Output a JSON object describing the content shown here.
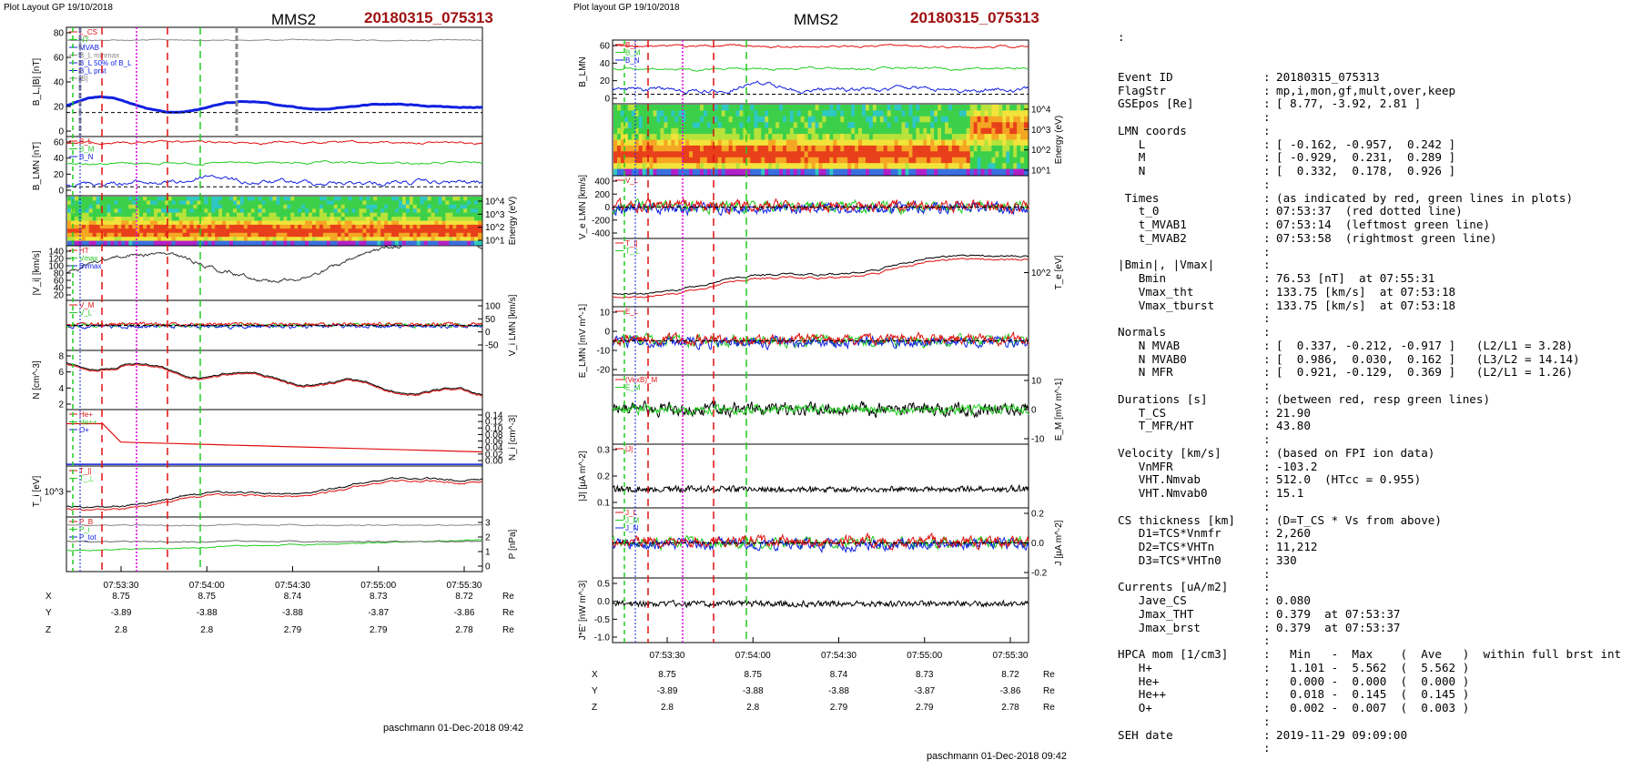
{
  "colors": {
    "red": "#e01010",
    "green": "#22cc22",
    "blue": "#1020e0",
    "black": "#000000",
    "gray": "#888888",
    "magenta": "#dd00dd",
    "title_red": "#a01010"
  },
  "panels": [
    {
      "header_left": "Plot Layout GP 19/10/2018",
      "title": "MMS2",
      "event": "20180315_075313",
      "footer": "paschmann 01-Dec-2018 09:42",
      "time_ticks": [
        "07:53:30",
        "07:54:00",
        "07:54:30",
        "07:55:00",
        "07:55:30"
      ],
      "ephemeris": [
        {
          "name": "X",
          "values": [
            "8.75",
            "8.75",
            "8.74",
            "8.73",
            "8.72"
          ],
          "unit": "Re"
        },
        {
          "name": "Y",
          "values": [
            "-3.89",
            "-3.88",
            "-3.88",
            "-3.87",
            "-3.86"
          ],
          "unit": "Re"
        },
        {
          "name": "Z",
          "values": [
            "2.8",
            "2.8",
            "2.79",
            "2.79",
            "2.78"
          ],
          "unit": "Re"
        }
      ],
      "subplots": [
        {
          "ylabel": "B_L,|B| [nT]",
          "ylabel_side": "left",
          "ticks": [
            "80",
            "60",
            "40",
            "20",
            "0"
          ],
          "legend": [
            "L_CS",
            "HT",
            "MVAB",
            "B_L minmax",
            "B_L 50% of B_L",
            "B_L prst",
            "|B|"
          ]
        },
        {
          "ylabel": "B_LMN [nT]",
          "ylabel_side": "left",
          "ticks": [
            "60",
            "40",
            "20",
            "0"
          ],
          "legend": [
            "B_L",
            "B_M",
            "B_N"
          ]
        },
        {
          "ylabel": "Energy (eV)",
          "ylabel_side": "right",
          "ticks": [
            "10^4",
            "10^3",
            "10^2",
            "10^1"
          ],
          "legend": []
        },
        {
          "ylabel": "|V_i| [km/s]",
          "ylabel_side": "left",
          "ticks": [
            "140",
            "120",
            "100",
            "80",
            "60",
            "40",
            "20"
          ],
          "legend": [
            "HT",
            "Vmax",
            "Bvmax"
          ]
        },
        {
          "ylabel": "V_i LMN [km/s]",
          "ylabel_side": "right",
          "ticks": [
            "100",
            "50",
            "0",
            "-50"
          ],
          "legend": [
            "V_M",
            "V_L"
          ]
        },
        {
          "ylabel": "N [cm^-3]",
          "ylabel_side": "left",
          "ticks": [
            "8",
            "6",
            "4",
            "2"
          ],
          "legend": []
        },
        {
          "ylabel": "N_i [cm^-3]",
          "ylabel_side": "right",
          "ticks": [
            "0.14",
            "0.12",
            "0.10",
            "0.08",
            "0.06",
            "0.04",
            "0.02",
            "0.00"
          ],
          "legend": [
            "He+",
            "He++",
            "O+"
          ]
        },
        {
          "ylabel": "T_i [eV]",
          "ylabel_side": "left",
          "ticks": [
            "10^3"
          ],
          "legend": [
            "T_||",
            "T_⊥"
          ]
        },
        {
          "ylabel": "P [nPa]",
          "ylabel_side": "right",
          "ticks": [
            "3",
            "2",
            "1",
            "0"
          ],
          "legend": [
            "P_B",
            "P_i",
            "P_tot"
          ]
        }
      ]
    },
    {
      "header_left": "Plot layout GP 19/10/2018",
      "title": "MMS2",
      "event": "20180315_075313",
      "footer": "paschmann 01-Dec-2018 09:42",
      "time_ticks": [
        "07:53:30",
        "07:54:00",
        "07:54:30",
        "07:55:00",
        "07:55:30"
      ],
      "ephemeris": [
        {
          "name": "X",
          "values": [
            "8.75",
            "8.75",
            "8.74",
            "8.73",
            "8.72"
          ],
          "unit": "Re"
        },
        {
          "name": "Y",
          "values": [
            "-3.89",
            "-3.88",
            "-3.88",
            "-3.87",
            "-3.86"
          ],
          "unit": "Re"
        },
        {
          "name": "Z",
          "values": [
            "2.8",
            "2.8",
            "2.79",
            "2.79",
            "2.78"
          ],
          "unit": "Re"
        }
      ],
      "subplots": [
        {
          "ylabel": "B_LMN",
          "ylabel_side": "left",
          "ticks": [
            "60",
            "40",
            "20",
            "0"
          ],
          "legend": [
            "B_L",
            "B_M",
            "B_N"
          ]
        },
        {
          "ylabel": "Energy (eV)",
          "ylabel_side": "right",
          "ticks": [
            "10^4",
            "10^3",
            "10^2",
            "10^1"
          ],
          "legend": []
        },
        {
          "ylabel": "V_e LMN [km/s]",
          "ylabel_side": "left",
          "ticks": [
            "400",
            "200",
            "0",
            "-200",
            "-400"
          ],
          "legend": [
            "V_L"
          ]
        },
        {
          "ylabel": "T_e [eV]",
          "ylabel_side": "right",
          "ticks": [
            "10^2"
          ],
          "legend": [
            "T_||",
            "T_⊥"
          ]
        },
        {
          "ylabel": "E_LMN [mV m^-1]",
          "ylabel_side": "left",
          "ticks": [
            "10",
            "0",
            "-10",
            "-20"
          ],
          "legend": [
            "E_L"
          ]
        },
        {
          "ylabel": "E_M [mV m^-1]",
          "ylabel_side": "right",
          "ticks": [
            "10",
            "0",
            "-10"
          ],
          "legend": [
            "(VexB)_M",
            "E_M"
          ]
        },
        {
          "ylabel": "|J| [µA m^-2]",
          "ylabel_side": "left",
          "ticks": [
            "0.3",
            "0.2",
            "0.1"
          ],
          "legend": [
            "|J|"
          ]
        },
        {
          "ylabel": "J [µA m^-2]",
          "ylabel_side": "right",
          "ticks": [
            "0.2",
            "0.0",
            "-0.2"
          ],
          "legend": [
            "J_L",
            "J_M",
            "J_N"
          ]
        },
        {
          "ylabel": "J*E' [nW m^-3]",
          "ylabel_side": "left",
          "ticks": [
            "0.5",
            "0.0",
            "-0.5",
            "-1.0"
          ],
          "legend": []
        }
      ]
    }
  ],
  "info": {
    "top_mark": ":",
    "rows": [
      {
        "label": "Event ID",
        "value": "20180315_075313"
      },
      {
        "label": "FlagStr",
        "value": "mp,i,mon,gf,mult,over,keep"
      },
      {
        "label": "GSEpos [Re]",
        "value": "[ 8.77, -3.92, 2.81 ]"
      },
      {
        "label": "",
        "value": ""
      },
      {
        "label": "LMN coords",
        "value": ""
      },
      {
        "label": "   L",
        "value": "[ -0.162, -0.957,  0.242 ]"
      },
      {
        "label": "   M",
        "value": "[ -0.929,  0.231,  0.289 ]"
      },
      {
        "label": "   N",
        "value": "[  0.332,  0.178,  0.926 ]"
      },
      {
        "label": "",
        "value": ""
      },
      {
        "label": " Times",
        "value": "(as indicated by red, green lines in plots)"
      },
      {
        "label": "   t_0",
        "value": "07:53:37  (red dotted line)"
      },
      {
        "label": "   t_MVAB1",
        "value": "07:53:14  (leftmost green line)"
      },
      {
        "label": "   t_MVAB2",
        "value": "07:53:58  (rightmost green line)"
      },
      {
        "label": "",
        "value": ""
      },
      {
        "label": "|Bmin|, |Vmax|",
        "value": ""
      },
      {
        "label": "   Bmin",
        "value": "76.53 [nT]  at 07:55:31"
      },
      {
        "label": "   Vmax_tht",
        "value": "133.75 [km/s]  at 07:53:18"
      },
      {
        "label": "   Vmax_tburst",
        "value": "133.75 [km/s]  at 07:53:18"
      },
      {
        "label": "",
        "value": ""
      },
      {
        "label": "Normals",
        "value": ""
      },
      {
        "label": "   N MVAB",
        "value": "[  0.337, -0.212, -0.917 ]   (L2/L1 = 3.28)"
      },
      {
        "label": "   N MVAB0",
        "value": "[  0.986,  0.030,  0.162 ]   (L3/L2 = 14.14)"
      },
      {
        "label": "   N MFR",
        "value": "[  0.921, -0.129,  0.369 ]   (L2/L1 = 1.26)"
      },
      {
        "label": "",
        "value": ""
      },
      {
        "label": "Durations [s]",
        "value": "(between red, resp green lines)"
      },
      {
        "label": "   T_CS",
        "value": "21.90"
      },
      {
        "label": "   T_MFR/HT",
        "value": "43.80"
      },
      {
        "label": "",
        "value": ""
      },
      {
        "label": "Velocity [km/s]",
        "value": "(based on FPI ion data)"
      },
      {
        "label": "   VnMFR",
        "value": "-103.2"
      },
      {
        "label": "   VHT.Nmvab",
        "value": "512.0  (HTcc = 0.955)"
      },
      {
        "label": "   VHT.Nmvab0",
        "value": "15.1"
      },
      {
        "label": "",
        "value": ""
      },
      {
        "label": "CS thickness [km]",
        "value": "(D=T_CS * Vs from above)"
      },
      {
        "label": "   D1=TCS*Vnmfr",
        "value": "2,260"
      },
      {
        "label": "   D2=TCS*VHTn",
        "value": "11,212"
      },
      {
        "label": "   D3=TCS*VHTn0",
        "value": "330"
      },
      {
        "label": "",
        "value": ""
      },
      {
        "label": "Currents [uA/m2]",
        "value": ""
      },
      {
        "label": "   Jave_CS",
        "value": "0.080"
      },
      {
        "label": "   Jmax_THT",
        "value": "0.379  at 07:53:37"
      },
      {
        "label": "   Jmax_brst",
        "value": "0.379  at 07:53:37"
      },
      {
        "label": "",
        "value": ""
      },
      {
        "label": "HPCA mom [1/cm3]",
        "value": "  Min   -  Max    (  Ave   )  within full brst int"
      },
      {
        "label": "   H+",
        "value": "  1.101 -  5.562  (  5.562 )"
      },
      {
        "label": "   He+",
        "value": "  0.000 -  0.000  (  0.000 )"
      },
      {
        "label": "   He++",
        "value": "  0.018 -  0.145  (  0.145 )"
      },
      {
        "label": "   O+",
        "value": "  0.002 -  0.007  (  0.003 )"
      },
      {
        "label": "",
        "value": ""
      },
      {
        "label": "SEH date",
        "value": "2019-11-29 09:09:00"
      },
      {
        "label": "",
        "value": ""
      }
    ]
  }
}
